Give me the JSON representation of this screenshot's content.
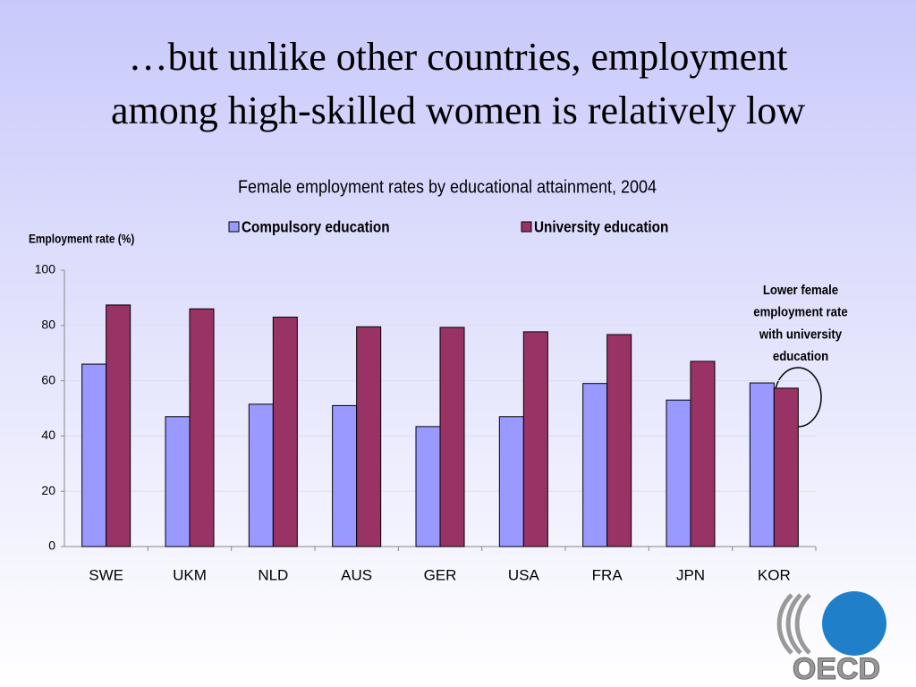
{
  "slide_title": [
    "…but unlike other countries, employment",
    "among high-skilled women is relatively low"
  ],
  "logo": "OECD",
  "chart_data": {
    "type": "bar",
    "title": "Female employment rates by educational attainment, 2004",
    "y_label": "Employment rate (%)",
    "categories": [
      "SWE",
      "UKM",
      "NLD",
      "AUS",
      "GER",
      "USA",
      "FRA",
      "JPN",
      "KOR"
    ],
    "series": [
      {
        "name": "Compulsory education",
        "color": "#9999ff",
        "values": [
          66,
          47,
          51.5,
          51,
          43.4,
          47,
          59,
          53,
          59.2
        ]
      },
      {
        "name": "University education",
        "color": "#993366",
        "values": [
          87.4,
          86,
          83,
          79.5,
          79.3,
          77.7,
          76.7,
          67,
          57.3
        ]
      }
    ],
    "ylim": [
      0,
      100
    ],
    "yticks": [
      0,
      20,
      40,
      60,
      80,
      100
    ],
    "grid": true,
    "annotation": [
      "Lower female",
      "employment rate",
      "with university",
      "education"
    ]
  }
}
